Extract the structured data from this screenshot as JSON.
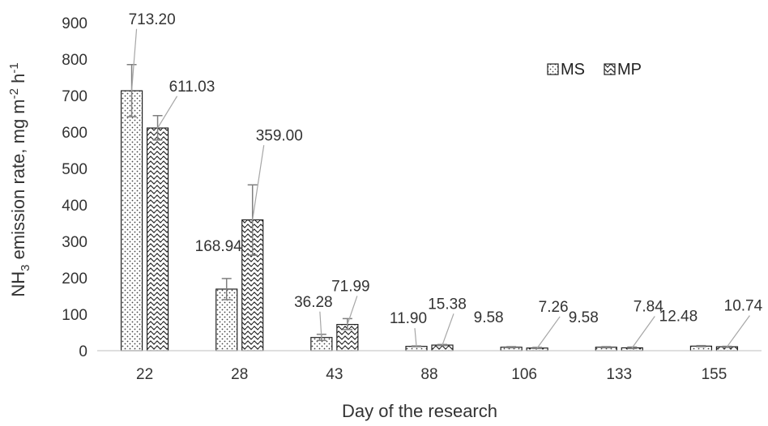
{
  "chart_data": {
    "type": "bar",
    "title": "",
    "xlabel": "Day of the research",
    "ylabel": {
      "prefix": "NH",
      "sub": "3",
      "middle": " emission rate, mg m",
      "sup1": "-2",
      "middle2": " h",
      "sup2": "-1"
    },
    "categories": [
      "22",
      "28",
      "43",
      "88",
      "106",
      "133",
      "155"
    ],
    "ylim": [
      0,
      900
    ],
    "yticks": [
      0,
      100,
      200,
      300,
      400,
      500,
      600,
      700,
      800,
      900
    ],
    "grid": false,
    "legend_position": "top-right",
    "series": [
      {
        "name": "MS",
        "pattern": "dots",
        "values": [
          713.2,
          168.94,
          36.28,
          11.9,
          9.58,
          9.58,
          12.48
        ],
        "labels": [
          "713.20",
          "168.94",
          "36.28",
          "11.90",
          "9.58",
          "9.58",
          "12.48"
        ],
        "error_upper": [
          785,
          198,
          45,
          13,
          11,
          11,
          14
        ],
        "error_lower": [
          642,
          140,
          28,
          11,
          8,
          8,
          11
        ]
      },
      {
        "name": "MP",
        "pattern": "waves",
        "values": [
          611.03,
          359.0,
          71.99,
          15.38,
          7.26,
          7.84,
          10.74
        ],
        "labels": [
          "611.03",
          "359.00",
          "71.99",
          "15.38",
          "7.26",
          "7.84",
          "10.74"
        ],
        "error_upper": [
          645,
          455,
          88,
          17,
          9,
          10,
          12
        ],
        "error_lower": [
          578,
          262,
          58,
          14,
          6,
          6,
          9
        ]
      }
    ]
  }
}
